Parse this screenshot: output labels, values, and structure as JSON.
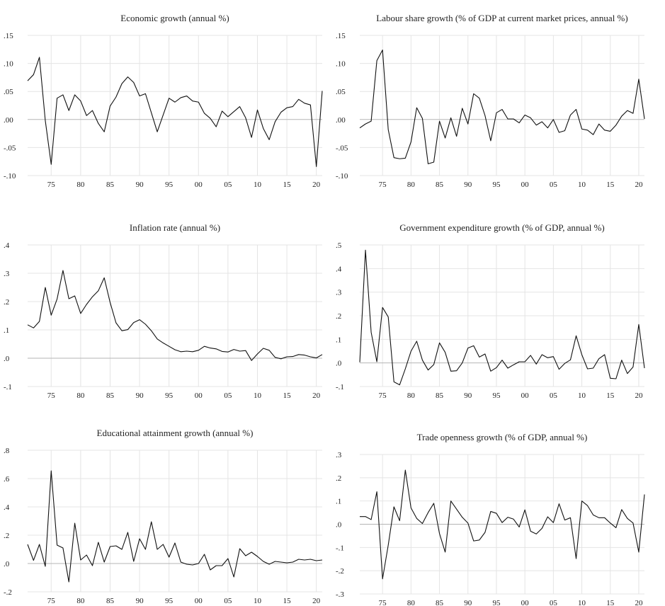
{
  "chart_data": [
    {
      "type": "line",
      "title": "Economic growth (annual %)",
      "x": [
        1971,
        1972,
        1973,
        1974,
        1975,
        1976,
        1977,
        1978,
        1979,
        1980,
        1981,
        1982,
        1983,
        1984,
        1985,
        1986,
        1987,
        1988,
        1989,
        1990,
        1991,
        1992,
        1993,
        1994,
        1995,
        1996,
        1997,
        1998,
        1999,
        2000,
        2001,
        2002,
        2003,
        2004,
        2005,
        2006,
        2007,
        2008,
        2009,
        2010,
        2011,
        2012,
        2013,
        2014,
        2015,
        2016,
        2017,
        2018,
        2019,
        2020,
        2021
      ],
      "values": [
        0.069,
        0.08,
        0.111,
        -0.002,
        -0.08,
        0.038,
        0.044,
        0.016,
        0.044,
        0.033,
        0.007,
        0.016,
        -0.007,
        -0.022,
        0.024,
        0.04,
        0.064,
        0.076,
        0.066,
        0.042,
        0.046,
        0.012,
        -0.022,
        0.008,
        0.038,
        0.031,
        0.039,
        0.042,
        0.033,
        0.031,
        0.011,
        0.002,
        -0.013,
        0.015,
        0.005,
        0.014,
        0.023,
        0.003,
        -0.032,
        0.017,
        -0.016,
        -0.036,
        -0.004,
        0.013,
        0.021,
        0.023,
        0.036,
        0.029,
        0.026,
        -0.084,
        0.051
      ],
      "ylim": [
        -0.1,
        0.15
      ],
      "yticks": [
        -0.1,
        -0.05,
        0.0,
        0.05,
        0.1,
        0.15
      ],
      "ytick_labels": [
        "-.10",
        "-.05",
        ".00",
        ".05",
        ".10",
        ".15"
      ],
      "xticks": [
        1975,
        1980,
        1985,
        1990,
        1995,
        2000,
        2005,
        2010,
        2015,
        2020
      ],
      "xtick_labels": [
        "75",
        "80",
        "85",
        "90",
        "95",
        "00",
        "05",
        "10",
        "15",
        "20"
      ],
      "xlim": [
        1971,
        2021
      ],
      "grid": true
    },
    {
      "type": "line",
      "title": "Labour share growth (% of GDP at current market prices, annual %)",
      "x": [
        1971,
        1972,
        1973,
        1974,
        1975,
        1976,
        1977,
        1978,
        1979,
        1980,
        1981,
        1982,
        1983,
        1984,
        1985,
        1986,
        1987,
        1988,
        1989,
        1990,
        1991,
        1992,
        1993,
        1994,
        1995,
        1996,
        1997,
        1998,
        1999,
        2000,
        2001,
        2002,
        2003,
        2004,
        2005,
        2006,
        2007,
        2008,
        2009,
        2010,
        2011,
        2012,
        2013,
        2014,
        2015,
        2016,
        2017,
        2018,
        2019,
        2020,
        2021
      ],
      "values": [
        -0.015,
        -0.008,
        -0.003,
        0.105,
        0.124,
        -0.018,
        -0.068,
        -0.07,
        -0.069,
        -0.04,
        0.021,
        0.002,
        -0.079,
        -0.076,
        -0.003,
        -0.033,
        0.003,
        -0.03,
        0.02,
        -0.008,
        0.046,
        0.038,
        0.007,
        -0.038,
        0.012,
        0.018,
        0.001,
        0.001,
        -0.006,
        0.008,
        0.003,
        -0.01,
        -0.004,
        -0.015,
        0.0,
        -0.023,
        -0.02,
        0.008,
        0.018,
        -0.017,
        -0.019,
        -0.027,
        -0.008,
        -0.019,
        -0.021,
        -0.01,
        0.006,
        0.016,
        0.011,
        0.072,
        0.001
      ],
      "ylim": [
        -0.1,
        0.15
      ],
      "yticks": [
        -0.1,
        -0.05,
        0.0,
        0.05,
        0.1,
        0.15
      ],
      "ytick_labels": [
        "-.10",
        "-.05",
        ".00",
        ".05",
        ".10",
        ".15"
      ],
      "xticks": [
        1975,
        1980,
        1985,
        1990,
        1995,
        2000,
        2005,
        2010,
        2015,
        2020
      ],
      "xtick_labels": [
        "75",
        "80",
        "85",
        "90",
        "95",
        "00",
        "05",
        "10",
        "15",
        "20"
      ],
      "xlim": [
        1971,
        2021
      ],
      "grid": true
    },
    {
      "type": "line",
      "title": "Inflation rate (annual %)",
      "x": [
        1971,
        1972,
        1973,
        1974,
        1975,
        1976,
        1977,
        1978,
        1979,
        1980,
        1981,
        1982,
        1983,
        1984,
        1985,
        1986,
        1987,
        1988,
        1989,
        1990,
        1991,
        1992,
        1993,
        1994,
        1995,
        1996,
        1997,
        1998,
        1999,
        2000,
        2001,
        2002,
        2003,
        2004,
        2005,
        2006,
        2007,
        2008,
        2009,
        2010,
        2011,
        2012,
        2013,
        2014,
        2015,
        2016,
        2017,
        2018,
        2019,
        2020,
        2021
      ],
      "values": [
        0.118,
        0.107,
        0.13,
        0.25,
        0.152,
        0.209,
        0.31,
        0.21,
        0.22,
        0.158,
        0.19,
        0.217,
        0.238,
        0.284,
        0.197,
        0.125,
        0.097,
        0.101,
        0.126,
        0.136,
        0.12,
        0.097,
        0.068,
        0.054,
        0.042,
        0.03,
        0.023,
        0.025,
        0.023,
        0.028,
        0.042,
        0.036,
        0.033,
        0.024,
        0.022,
        0.031,
        0.025,
        0.027,
        -0.008,
        0.015,
        0.035,
        0.028,
        0.003,
        -0.002,
        0.005,
        0.006,
        0.013,
        0.011,
        0.005,
        0.001,
        0.013
      ],
      "ylim": [
        -0.1,
        0.4
      ],
      "yticks": [
        -0.1,
        0.0,
        0.1,
        0.2,
        0.3,
        0.4
      ],
      "ytick_labels": [
        "-.1",
        ".0",
        ".1",
        ".2",
        ".3",
        ".4"
      ],
      "xticks": [
        1975,
        1980,
        1985,
        1990,
        1995,
        2000,
        2005,
        2010,
        2015,
        2020
      ],
      "xtick_labels": [
        "75",
        "80",
        "85",
        "90",
        "95",
        "00",
        "05",
        "10",
        "15",
        "20"
      ],
      "xlim": [
        1971,
        2021
      ],
      "grid": true
    },
    {
      "type": "line",
      "title": "Government expenditure growth (% of GDP, annual %)",
      "x": [
        1971,
        1972,
        1973,
        1974,
        1975,
        1976,
        1977,
        1978,
        1979,
        1980,
        1981,
        1982,
        1983,
        1984,
        1985,
        1986,
        1987,
        1988,
        1989,
        1990,
        1991,
        1992,
        1993,
        1994,
        1995,
        1996,
        1997,
        1998,
        1999,
        2000,
        2001,
        2002,
        2003,
        2004,
        2005,
        2006,
        2007,
        2008,
        2009,
        2010,
        2011,
        2012,
        2013,
        2014,
        2015,
        2016,
        2017,
        2018,
        2019,
        2020,
        2021
      ],
      "values": [
        0.003,
        0.478,
        0.13,
        0.005,
        0.235,
        0.195,
        -0.08,
        -0.093,
        -0.025,
        0.05,
        0.092,
        0.012,
        -0.03,
        -0.007,
        0.085,
        0.045,
        -0.035,
        -0.033,
        0.0,
        0.063,
        0.073,
        0.025,
        0.038,
        -0.035,
        -0.02,
        0.012,
        -0.022,
        -0.008,
        0.005,
        0.005,
        0.032,
        -0.005,
        0.035,
        0.022,
        0.027,
        -0.027,
        -0.002,
        0.013,
        0.115,
        0.035,
        -0.025,
        -0.022,
        0.018,
        0.035,
        -0.065,
        -0.067,
        0.012,
        -0.045,
        -0.017,
        0.163,
        -0.022
      ],
      "ylim": [
        -0.1,
        0.5
      ],
      "yticks": [
        -0.1,
        0.0,
        0.1,
        0.2,
        0.3,
        0.4,
        0.5
      ],
      "ytick_labels": [
        "-.1",
        ".0",
        ".1",
        ".2",
        ".3",
        ".4",
        ".5"
      ],
      "xticks": [
        1975,
        1980,
        1985,
        1990,
        1995,
        2000,
        2005,
        2010,
        2015,
        2020
      ],
      "xtick_labels": [
        "75",
        "80",
        "85",
        "90",
        "95",
        "00",
        "05",
        "10",
        "15",
        "20"
      ],
      "xlim": [
        1971,
        2021
      ],
      "grid": true
    },
    {
      "type": "line",
      "title": "Educational attainment growth (annual %)",
      "x": [
        1971,
        1972,
        1973,
        1974,
        1975,
        1976,
        1977,
        1978,
        1979,
        1980,
        1981,
        1982,
        1983,
        1984,
        1985,
        1986,
        1987,
        1988,
        1989,
        1990,
        1991,
        1992,
        1993,
        1994,
        1995,
        1996,
        1997,
        1998,
        1999,
        2000,
        2001,
        2002,
        2003,
        2004,
        2005,
        2006,
        2007,
        2008,
        2009,
        2010,
        2011,
        2012,
        2013,
        2014,
        2015,
        2016,
        2017,
        2018,
        2019,
        2020,
        2021
      ],
      "values": [
        0.135,
        0.022,
        0.135,
        -0.02,
        0.655,
        0.13,
        0.11,
        -0.13,
        0.285,
        0.025,
        0.06,
        -0.015,
        0.15,
        0.01,
        0.12,
        0.125,
        0.1,
        0.22,
        0.015,
        0.175,
        0.1,
        0.295,
        0.1,
        0.135,
        0.045,
        0.145,
        0.01,
        -0.005,
        -0.01,
        0.0,
        0.065,
        -0.045,
        -0.015,
        -0.015,
        0.035,
        -0.095,
        0.105,
        0.055,
        0.08,
        0.05,
        0.015,
        -0.005,
        0.015,
        0.01,
        0.005,
        0.01,
        0.03,
        0.025,
        0.03,
        0.02,
        0.025
      ],
      "ylim": [
        -0.2,
        0.8
      ],
      "yticks": [
        -0.2,
        0.0,
        0.2,
        0.4,
        0.6,
        0.8
      ],
      "ytick_labels": [
        "-.2",
        ".0",
        ".2",
        ".4",
        ".6",
        ".8"
      ],
      "xticks": [
        1975,
        1980,
        1985,
        1990,
        1995,
        2000,
        2005,
        2010,
        2015,
        2020
      ],
      "xtick_labels": [
        "75",
        "80",
        "85",
        "90",
        "95",
        "00",
        "05",
        "10",
        "15",
        "20"
      ],
      "xlim": [
        1971,
        2021
      ],
      "grid": true
    },
    {
      "type": "line",
      "title": "Trade openness growth (% of GDP, annual %)",
      "x": [
        1971,
        1972,
        1973,
        1974,
        1975,
        1976,
        1977,
        1978,
        1979,
        1980,
        1981,
        1982,
        1983,
        1984,
        1985,
        1986,
        1987,
        1988,
        1989,
        1990,
        1991,
        1992,
        1993,
        1994,
        1995,
        1996,
        1997,
        1998,
        1999,
        2000,
        2001,
        2002,
        2003,
        2004,
        2005,
        2006,
        2007,
        2008,
        2009,
        2010,
        2011,
        2012,
        2013,
        2014,
        2015,
        2016,
        2017,
        2018,
        2019,
        2020,
        2021
      ],
      "values": [
        0.033,
        0.033,
        0.02,
        0.14,
        -0.235,
        -0.09,
        0.075,
        0.015,
        0.233,
        0.07,
        0.025,
        0.003,
        0.05,
        0.09,
        -0.04,
        -0.12,
        0.1,
        0.065,
        0.03,
        0.005,
        -0.072,
        -0.068,
        -0.035,
        0.055,
        0.047,
        0.007,
        0.03,
        0.022,
        -0.012,
        0.062,
        -0.03,
        -0.042,
        -0.018,
        0.032,
        0.007,
        0.088,
        0.018,
        0.028,
        -0.148,
        0.1,
        0.08,
        0.04,
        0.028,
        0.028,
        0.005,
        -0.015,
        0.063,
        0.025,
        0.005,
        -0.12,
        0.128
      ],
      "ylim": [
        -0.3,
        0.3
      ],
      "yticks": [
        -0.3,
        -0.2,
        -0.1,
        0.0,
        0.1,
        0.2,
        0.3
      ],
      "ytick_labels": [
        "-.3",
        "-.2",
        "-.1",
        ".0",
        ".1",
        ".2",
        ".3"
      ],
      "xticks": [
        1975,
        1980,
        1985,
        1990,
        1995,
        2000,
        2005,
        2010,
        2015,
        2020
      ],
      "xtick_labels": [
        "75",
        "80",
        "85",
        "90",
        "95",
        "00",
        "05",
        "10",
        "15",
        "20"
      ],
      "xlim": [
        1971,
        2021
      ],
      "grid": true
    }
  ]
}
